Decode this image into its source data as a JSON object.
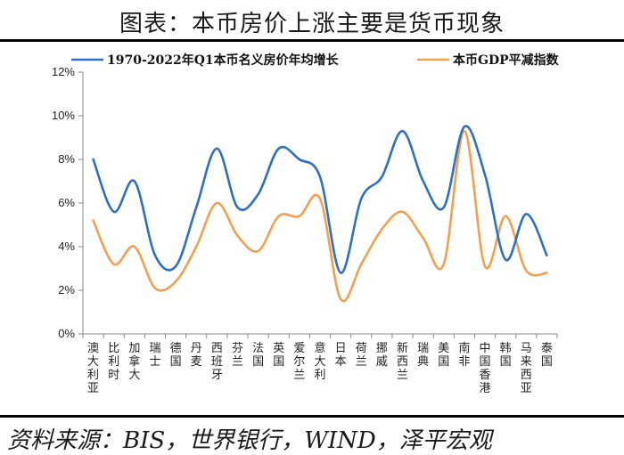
{
  "title": "图表：本币房价上涨主要是货币现象",
  "source": "资料来源：BIS，世界银行，WIND，泽平宏观",
  "chart_data": {
    "type": "line",
    "ylim": [
      0,
      12
    ],
    "yticks": [
      "0%",
      "2%",
      "4%",
      "6%",
      "8%",
      "10%",
      "12%"
    ],
    "legend_position": "top",
    "categories": [
      "澳大利亚",
      "比利时",
      "加拿大",
      "瑞士",
      "德国",
      "丹麦",
      "西班牙",
      "芬兰",
      "法国",
      "英国",
      "爱尔兰",
      "意大利",
      "日本",
      "荷兰",
      "挪威",
      "新西兰",
      "瑞典",
      "美国",
      "南非",
      "中国香港",
      "韩国",
      "马来西亚",
      "泰国"
    ],
    "series": [
      {
        "name": "1970-2022年Q1本币名义房价年均增长",
        "color": "#2f6fbf",
        "values": [
          8.0,
          5.6,
          7.0,
          3.6,
          3.1,
          5.8,
          8.5,
          5.8,
          6.4,
          8.5,
          8.0,
          7.2,
          2.8,
          6.2,
          7.2,
          9.3,
          7.0,
          5.8,
          9.5,
          7.3,
          3.4,
          5.5,
          3.6
        ]
      },
      {
        "name": "本币GDP平减指数",
        "color": "#f0a050",
        "values": [
          5.2,
          3.2,
          4.0,
          2.1,
          2.4,
          4.0,
          6.0,
          4.5,
          3.8,
          5.4,
          5.4,
          6.2,
          1.6,
          3.2,
          4.8,
          5.6,
          4.4,
          3.2,
          9.3,
          3.1,
          5.4,
          2.9,
          2.8
        ]
      }
    ]
  }
}
